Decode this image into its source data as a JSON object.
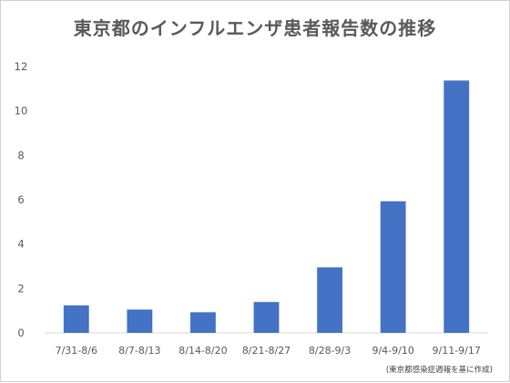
{
  "chart_data": {
    "type": "bar",
    "title": "東京都のインフルエンザ患者報告数の推移",
    "source_note": "(東京都感染症週報を基に作成)",
    "categories": [
      "7/31-8/6",
      "8/7-8/13",
      "8/14-8/20",
      "8/21-8/27",
      "8/28-9/3",
      "9/4-9/10",
      "9/11-9/17"
    ],
    "values": [
      1.24,
      1.05,
      0.93,
      1.39,
      2.95,
      5.93,
      11.37
    ],
    "ylim": [
      0,
      12
    ],
    "yticks": [
      0,
      2,
      4,
      6,
      8,
      10,
      12
    ],
    "grid": false,
    "bar_color": "#4472C4",
    "axis_color": "#d9d9d9"
  }
}
